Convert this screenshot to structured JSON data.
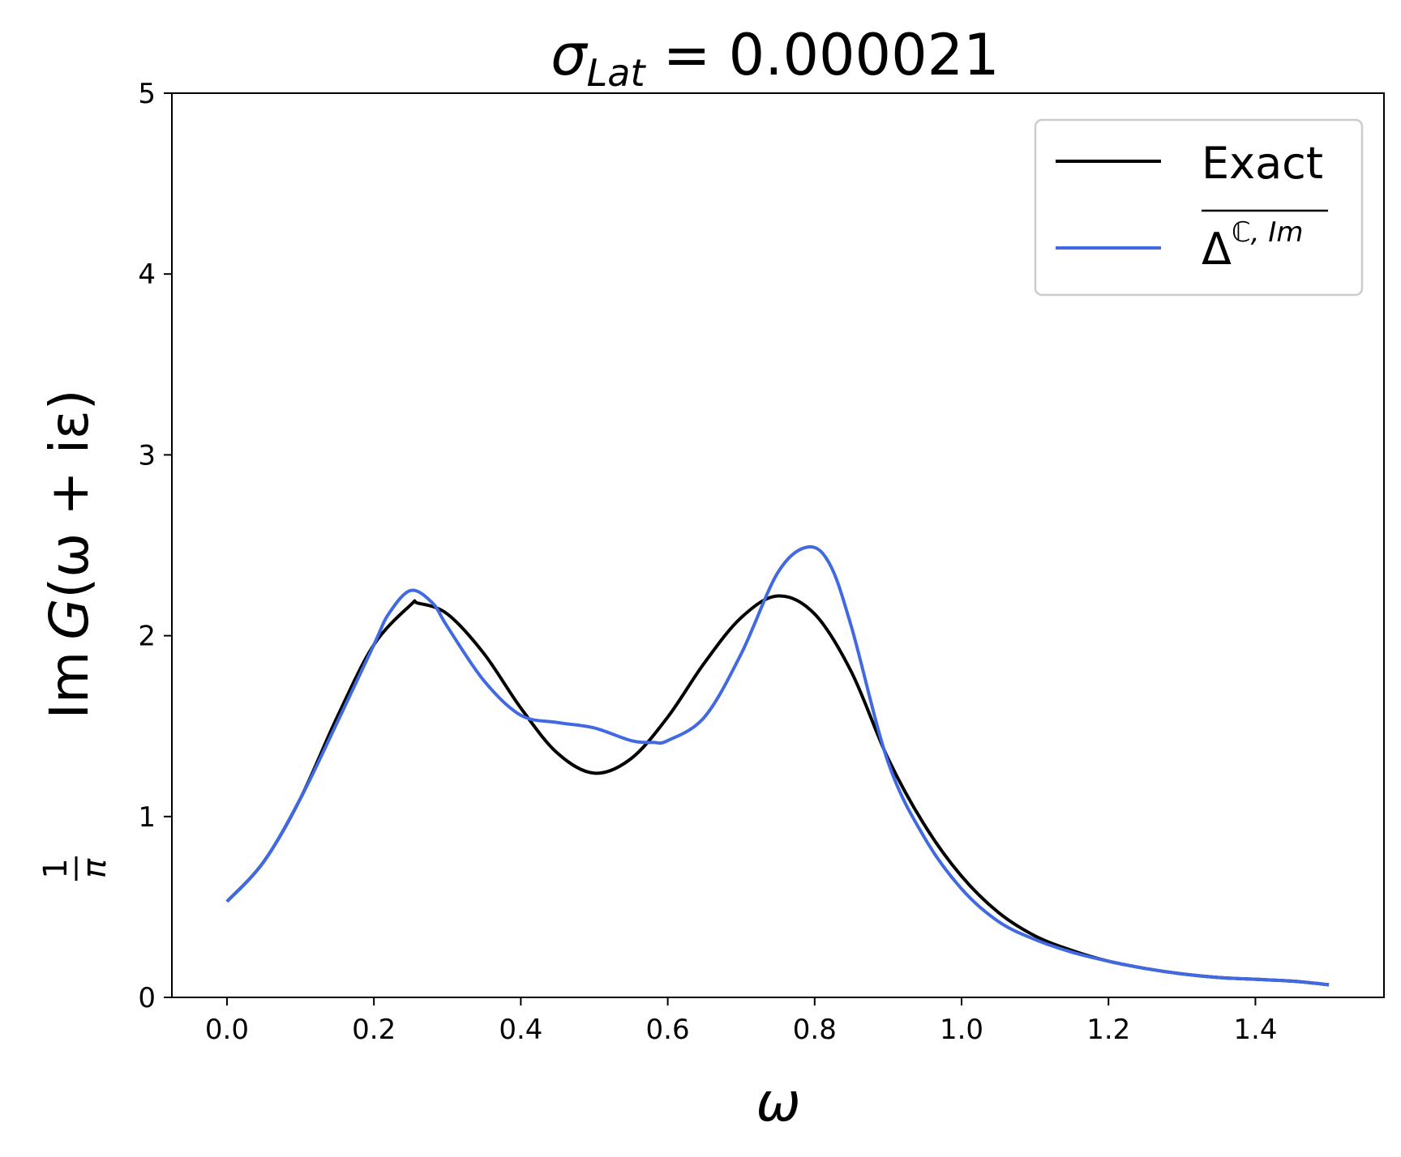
{
  "chart_data": {
    "type": "line",
    "title": {
      "symbol": "σ",
      "subscript": "Lat",
      "rest": " = 0.000021"
    },
    "xlabel": "ω",
    "ylabel": {
      "frac_num": "1",
      "frac_den": "π",
      "text_im": "Im",
      "text_g": "G",
      "text_args": "(ω + iε)"
    },
    "xlim": [
      -0.075,
      1.575
    ],
    "ylim": [
      0,
      5
    ],
    "xticks": [
      0.0,
      0.2,
      0.4,
      0.6,
      0.8,
      1.0,
      1.2,
      1.4
    ],
    "xtick_labels": [
      "0.0",
      "0.2",
      "0.4",
      "0.6",
      "0.8",
      "1.0",
      "1.2",
      "1.4"
    ],
    "yticks": [
      0,
      1,
      2,
      3,
      4,
      5
    ],
    "ytick_labels": [
      "0",
      "1",
      "2",
      "3",
      "4",
      "5"
    ],
    "grid": false,
    "legend_position": "top-right",
    "series": [
      {
        "name": "Exact",
        "color": "#000000",
        "x": [
          0.0,
          0.05,
          0.1,
          0.15,
          0.2,
          0.25,
          0.26,
          0.3,
          0.35,
          0.4,
          0.45,
          0.5,
          0.55,
          0.6,
          0.65,
          0.7,
          0.75,
          0.8,
          0.85,
          0.9,
          0.95,
          1.0,
          1.05,
          1.1,
          1.15,
          1.2,
          1.25,
          1.3,
          1.35,
          1.4,
          1.45,
          1.5
        ],
        "y": [
          0.53,
          0.75,
          1.1,
          1.55,
          1.95,
          2.17,
          2.18,
          2.12,
          1.9,
          1.6,
          1.35,
          1.24,
          1.32,
          1.55,
          1.85,
          2.1,
          2.22,
          2.12,
          1.8,
          1.32,
          0.95,
          0.67,
          0.47,
          0.34,
          0.26,
          0.2,
          0.16,
          0.13,
          0.11,
          0.1,
          0.09,
          0.07
        ]
      },
      {
        "name": "Δ^{ℂ,Im}",
        "label_base": "Δ",
        "label_sup": "ℂ, Im",
        "color": "#4169e1",
        "x": [
          0.0,
          0.05,
          0.1,
          0.15,
          0.2,
          0.22,
          0.25,
          0.28,
          0.3,
          0.35,
          0.4,
          0.45,
          0.5,
          0.55,
          0.58,
          0.6,
          0.65,
          0.7,
          0.75,
          0.79,
          0.82,
          0.85,
          0.9,
          0.95,
          1.0,
          1.05,
          1.1,
          1.15,
          1.2,
          1.25,
          1.3,
          1.35,
          1.4,
          1.45,
          1.5
        ],
        "y": [
          0.53,
          0.75,
          1.1,
          1.52,
          1.95,
          2.12,
          2.25,
          2.18,
          2.05,
          1.75,
          1.56,
          1.52,
          1.49,
          1.42,
          1.41,
          1.42,
          1.55,
          1.9,
          2.35,
          2.49,
          2.4,
          2.05,
          1.3,
          0.88,
          0.6,
          0.42,
          0.32,
          0.25,
          0.2,
          0.16,
          0.13,
          0.11,
          0.1,
          0.09,
          0.07
        ]
      }
    ]
  }
}
